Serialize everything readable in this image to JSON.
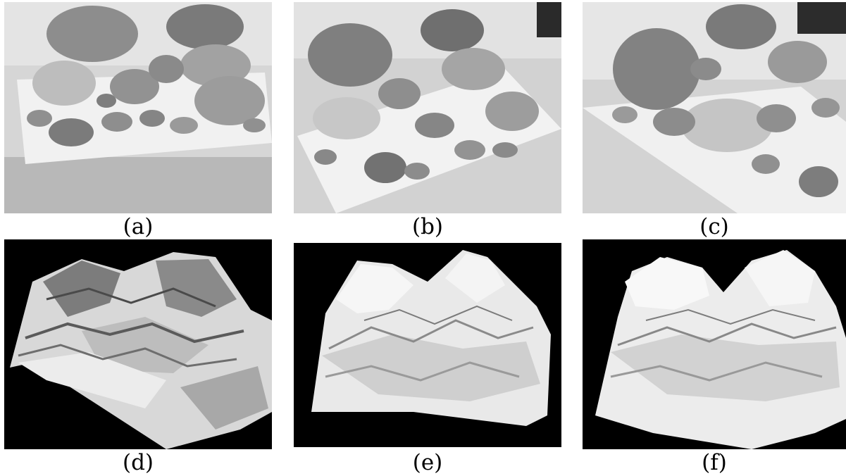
{
  "captions": {
    "a": "(a)",
    "b": "(b)",
    "c": "(c)",
    "d": "(d)",
    "e": "(e)",
    "f": "(f)"
  },
  "colors": {
    "background": "#ffffff",
    "render_background": "#000000"
  }
}
